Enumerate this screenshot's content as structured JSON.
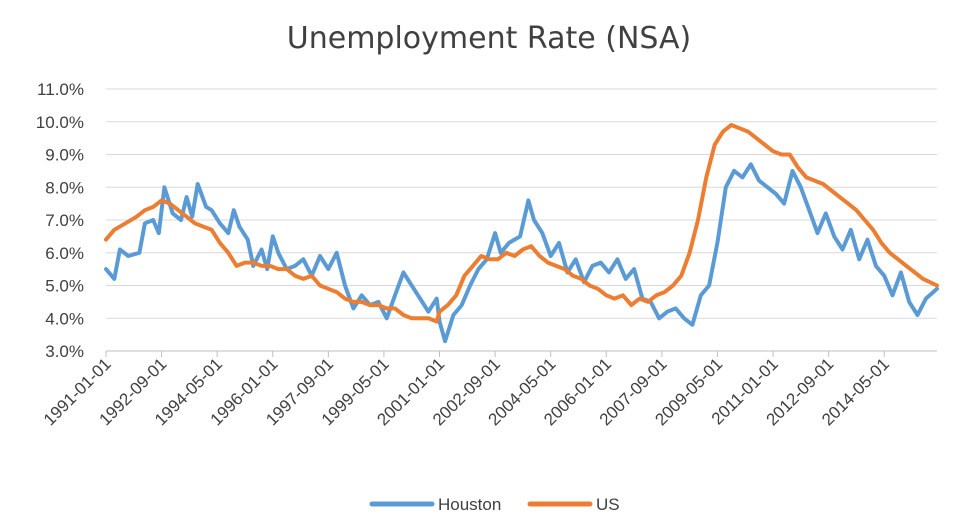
{
  "chart_data": {
    "type": "line",
    "title": "Unemployment Rate (NSA)",
    "xlabel": "",
    "ylabel": "",
    "ylim": [
      3.0,
      11.0
    ],
    "y_ticks": [
      "3.0%",
      "4.0%",
      "5.0%",
      "6.0%",
      "7.0%",
      "8.0%",
      "9.0%",
      "10.0%",
      "11.0%"
    ],
    "x_range": [
      "1991-01",
      "2015-12"
    ],
    "x_tick_labels": [
      "1991-01-01",
      "1992-09-01",
      "1994-05-01",
      "1996-01-01",
      "1997-09-01",
      "1999-05-01",
      "2001-01-01",
      "2002-09-01",
      "2004-05-01",
      "2006-01-01",
      "2007-09-01",
      "2009-05-01",
      "2011-01-01",
      "2012-09-01",
      "2014-05-01"
    ],
    "grid": true,
    "legend_position": "bottom",
    "series": [
      {
        "name": "Houston",
        "color": "#5b9bd5",
        "x": [
          "1991-01",
          "1991-04",
          "1991-06",
          "1991-09",
          "1992-01",
          "1992-03",
          "1992-06",
          "1992-08",
          "1992-10",
          "1993-01",
          "1993-04",
          "1993-06",
          "1993-08",
          "1993-10",
          "1994-01",
          "1994-03",
          "1994-06",
          "1994-09",
          "1994-11",
          "1995-01",
          "1995-04",
          "1995-06",
          "1995-09",
          "1995-11",
          "1996-01",
          "1996-03",
          "1996-06",
          "1996-09",
          "1996-12",
          "1997-03",
          "1997-06",
          "1997-09",
          "1997-12",
          "1998-03",
          "1998-06",
          "1998-09",
          "1998-12",
          "1999-03",
          "1999-06",
          "1999-09",
          "1999-12",
          "2000-03",
          "2000-06",
          "2000-09",
          "2000-12",
          "2001-01",
          "2001-03",
          "2001-06",
          "2001-09",
          "2001-12",
          "2002-03",
          "2002-06",
          "2002-09",
          "2002-11",
          "2003-02",
          "2003-06",
          "2003-09",
          "2003-11",
          "2004-02",
          "2004-05",
          "2004-08",
          "2004-11",
          "2005-02",
          "2005-05",
          "2005-08",
          "2005-11",
          "2006-02",
          "2006-05",
          "2006-08",
          "2006-11",
          "2007-02",
          "2007-05",
          "2007-08",
          "2007-11",
          "2008-02",
          "2008-05",
          "2008-08",
          "2008-11",
          "2009-02",
          "2009-05",
          "2009-08",
          "2009-11",
          "2010-02",
          "2010-05",
          "2010-08",
          "2010-11",
          "2011-02",
          "2011-05",
          "2011-08",
          "2011-11",
          "2012-02",
          "2012-05",
          "2012-08",
          "2012-11",
          "2013-02",
          "2013-05",
          "2013-08",
          "2013-11",
          "2014-02",
          "2014-05",
          "2014-08",
          "2014-11",
          "2015-02",
          "2015-05",
          "2015-08",
          "2015-12"
        ],
        "values": [
          5.5,
          5.2,
          6.1,
          5.9,
          6.0,
          6.9,
          7.0,
          6.6,
          8.0,
          7.2,
          7.0,
          7.7,
          7.1,
          8.1,
          7.4,
          7.3,
          6.9,
          6.6,
          7.3,
          6.8,
          6.4,
          5.6,
          6.1,
          5.5,
          6.5,
          6.0,
          5.5,
          5.6,
          5.8,
          5.3,
          5.9,
          5.5,
          6.0,
          5.0,
          4.3,
          4.7,
          4.4,
          4.5,
          4.0,
          4.7,
          5.4,
          5.0,
          4.6,
          4.2,
          4.6,
          3.9,
          3.3,
          4.1,
          4.4,
          5.0,
          5.5,
          5.8,
          6.6,
          6.0,
          6.3,
          6.5,
          7.6,
          7.0,
          6.6,
          5.9,
          6.3,
          5.4,
          5.8,
          5.1,
          5.6,
          5.7,
          5.4,
          5.8,
          5.2,
          5.5,
          4.6,
          4.5,
          4.0,
          4.2,
          4.3,
          4.0,
          3.8,
          4.7,
          5.0,
          6.3,
          8.0,
          8.5,
          8.3,
          8.7,
          8.2,
          8.0,
          7.8,
          7.5,
          8.5,
          8.0,
          7.3,
          6.6,
          7.2,
          6.5,
          6.1,
          6.7,
          5.8,
          6.4,
          5.6,
          5.3,
          4.7,
          5.4,
          4.5,
          4.1,
          4.6,
          4.9
        ]
      },
      {
        "name": "US",
        "color": "#ed7d31",
        "x": [
          "1991-01",
          "1991-04",
          "1991-08",
          "1991-12",
          "1992-03",
          "1992-06",
          "1992-09",
          "1992-12",
          "1993-03",
          "1993-06",
          "1993-09",
          "1993-12",
          "1994-03",
          "1994-06",
          "1994-09",
          "1994-12",
          "1995-03",
          "1995-06",
          "1995-09",
          "1995-12",
          "1996-03",
          "1996-06",
          "1996-09",
          "1996-12",
          "1997-03",
          "1997-06",
          "1997-09",
          "1997-12",
          "1998-03",
          "1998-06",
          "1998-09",
          "1998-12",
          "1999-03",
          "1999-06",
          "1999-09",
          "1999-12",
          "2000-03",
          "2000-06",
          "2000-09",
          "2000-12",
          "2001-01",
          "2001-04",
          "2001-07",
          "2001-10",
          "2002-01",
          "2002-04",
          "2002-07",
          "2002-10",
          "2003-01",
          "2003-04",
          "2003-07",
          "2003-10",
          "2004-01",
          "2004-04",
          "2004-07",
          "2004-10",
          "2005-01",
          "2005-04",
          "2005-07",
          "2005-10",
          "2006-01",
          "2006-04",
          "2006-07",
          "2006-10",
          "2007-01",
          "2007-04",
          "2007-07",
          "2007-10",
          "2008-01",
          "2008-04",
          "2008-07",
          "2008-10",
          "2009-01",
          "2009-04",
          "2009-07",
          "2009-10",
          "2010-01",
          "2010-04",
          "2010-07",
          "2010-10",
          "2011-01",
          "2011-04",
          "2011-07",
          "2011-10",
          "2012-01",
          "2012-04",
          "2012-07",
          "2012-10",
          "2013-01",
          "2013-04",
          "2013-07",
          "2013-10",
          "2014-01",
          "2014-04",
          "2014-07",
          "2014-10",
          "2015-01",
          "2015-04",
          "2015-07",
          "2015-12"
        ],
        "values": [
          6.4,
          6.7,
          6.9,
          7.1,
          7.3,
          7.4,
          7.6,
          7.5,
          7.3,
          7.1,
          6.9,
          6.8,
          6.7,
          6.3,
          6.0,
          5.6,
          5.7,
          5.7,
          5.6,
          5.6,
          5.5,
          5.5,
          5.3,
          5.2,
          5.3,
          5.0,
          4.9,
          4.8,
          4.6,
          4.5,
          4.5,
          4.4,
          4.4,
          4.3,
          4.3,
          4.1,
          4.0,
          4.0,
          4.0,
          3.9,
          4.2,
          4.4,
          4.7,
          5.3,
          5.6,
          5.9,
          5.8,
          5.8,
          6.0,
          5.9,
          6.1,
          6.2,
          5.9,
          5.7,
          5.6,
          5.5,
          5.3,
          5.2,
          5.0,
          4.9,
          4.7,
          4.6,
          4.7,
          4.4,
          4.6,
          4.5,
          4.7,
          4.8,
          5.0,
          5.3,
          6.0,
          7.0,
          8.3,
          9.3,
          9.7,
          9.9,
          9.8,
          9.7,
          9.5,
          9.3,
          9.1,
          9.0,
          9.0,
          8.6,
          8.3,
          8.2,
          8.1,
          7.9,
          7.7,
          7.5,
          7.3,
          7.0,
          6.7,
          6.3,
          6.0,
          5.8,
          5.6,
          5.4,
          5.2,
          5.0
        ]
      }
    ]
  }
}
